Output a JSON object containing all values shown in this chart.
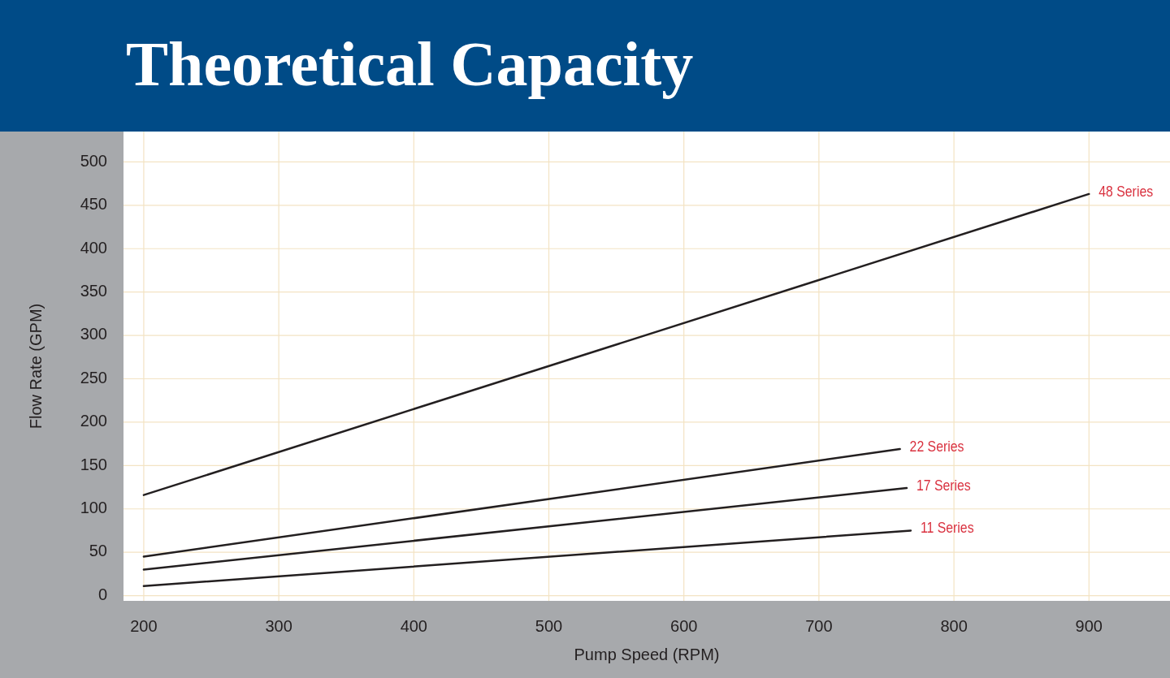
{
  "chart_data": {
    "type": "line",
    "title": "Theoretical Capacity",
    "xlabel": "Pump Speed (RPM)",
    "ylabel": "Flow Rate (GPM)",
    "xlim": [
      185,
      960
    ],
    "xticks": [
      200,
      300,
      400,
      500,
      600,
      700,
      800,
      900
    ],
    "ylim": [
      -6,
      535
    ],
    "yticks": [
      0,
      50,
      100,
      150,
      200,
      250,
      300,
      350,
      400,
      450,
      500
    ],
    "grid": true,
    "legend": false,
    "marker": "none",
    "line_style": "solid",
    "series": [
      {
        "name": "48 Series",
        "color": "#231f20",
        "x": [
          200,
          900
        ],
        "values": [
          116,
          463
        ]
      },
      {
        "name": "22 Series",
        "color": "#231f20",
        "x": [
          200,
          760
        ],
        "values": [
          45,
          169
        ]
      },
      {
        "name": "17 Series",
        "color": "#231f20",
        "x": [
          200,
          765
        ],
        "values": [
          30,
          124
        ]
      },
      {
        "name": "11 Series",
        "color": "#231f20",
        "x": [
          200,
          768
        ],
        "values": [
          11,
          75
        ]
      }
    ]
  }
}
